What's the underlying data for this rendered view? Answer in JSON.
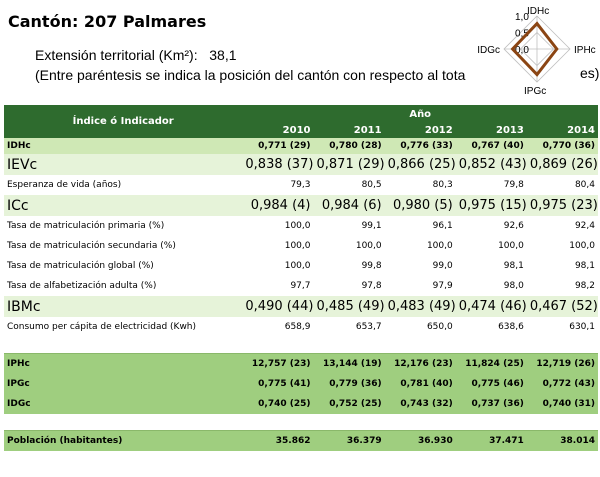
{
  "header": {
    "title": "Cantón: 207 Palmares",
    "extension_label": "Extensión territorial (Km²):",
    "extension_value": "38,1",
    "note": "(Entre paréntesis se indica la posición del cantón con respecto al tota",
    "note_tail": "es)"
  },
  "radar": {
    "axes": [
      "IDHc",
      "IPHc",
      "IPGc",
      "IDGc"
    ],
    "ticks": [
      "1,0",
      "0,5",
      "0,0"
    ],
    "values": [
      0.771,
      0.6,
      0.775,
      0.74
    ],
    "line_color": "#8b4513"
  },
  "table": {
    "indicator_header": "Índice ó Indicador",
    "year_header": "Año",
    "years": [
      "2010",
      "2011",
      "2012",
      "2013",
      "2014"
    ],
    "rows": [
      {
        "style": "main",
        "label": "IDHc",
        "values": [
          "0,771 (29)",
          "0,780 (28)",
          "0,776 (33)",
          "0,767 (40)",
          "0,770 (36)"
        ]
      },
      {
        "style": "big",
        "label": "IEVc",
        "values": [
          "0,838 (37)",
          "0,871 (29)",
          "0,866 (25)",
          "0,852 (43)",
          "0,869 (26)"
        ]
      },
      {
        "style": "sub",
        "label": "Esperanza de vida (años)",
        "values": [
          "79,3",
          "80,5",
          "80,3",
          "79,8",
          "80,4"
        ]
      },
      {
        "style": "big",
        "label": "ICc",
        "values": [
          "0,984 (4)",
          "0,984 (6)",
          "0,980 (5)",
          "0,975 (15)",
          "0,975 (23)"
        ]
      },
      {
        "style": "sub",
        "label": "Tasa de matriculación primaria (%)",
        "values": [
          "100,0",
          "99,1",
          "96,1",
          "92,6",
          "92,4"
        ]
      },
      {
        "style": "sub",
        "label": "Tasa de matriculación secundaria (%)",
        "values": [
          "100,0",
          "100,0",
          "100,0",
          "100,0",
          "100,0"
        ]
      },
      {
        "style": "sub",
        "label": "Tasa de matriculación global (%)",
        "values": [
          "100,0",
          "99,8",
          "99,0",
          "98,1",
          "98,1"
        ]
      },
      {
        "style": "sub",
        "label": "Tasa de alfabetización adulta (%)",
        "values": [
          "97,7",
          "97,8",
          "97,9",
          "98,0",
          "98,2"
        ]
      },
      {
        "style": "big",
        "label": "IBMc",
        "values": [
          "0,490 (44)",
          "0,485 (49)",
          "0,483 (49)",
          "0,474 (46)",
          "0,467 (52)"
        ]
      },
      {
        "style": "sub",
        "label": "Consumo per cápita de electricidad (Kwh)",
        "values": [
          "658,9",
          "653,7",
          "650,0",
          "638,6",
          "630,1"
        ]
      },
      {
        "style": "gap",
        "label": "",
        "values": [
          "",
          "",
          "",
          "",
          ""
        ]
      },
      {
        "style": "band",
        "label": "IPHc",
        "values": [
          "12,757 (23)",
          "13,144 (19)",
          "12,176 (23)",
          "11,824 (25)",
          "12,719 (26)"
        ]
      },
      {
        "style": "band",
        "label": "IPGc",
        "values": [
          "0,775 (41)",
          "0,779 (36)",
          "0,781 (40)",
          "0,775 (46)",
          "0,772 (43)"
        ]
      },
      {
        "style": "band",
        "label": "IDGc",
        "values": [
          "0,740 (25)",
          "0,752 (25)",
          "0,743 (32)",
          "0,737 (36)",
          "0,740 (31)"
        ]
      },
      {
        "style": "gap",
        "label": "",
        "values": [
          "",
          "",
          "",
          "",
          ""
        ]
      },
      {
        "style": "band",
        "label": "Población (habitantes)",
        "values": [
          "35.862",
          "36.379",
          "36.930",
          "37.471",
          "38.014"
        ]
      }
    ]
  }
}
